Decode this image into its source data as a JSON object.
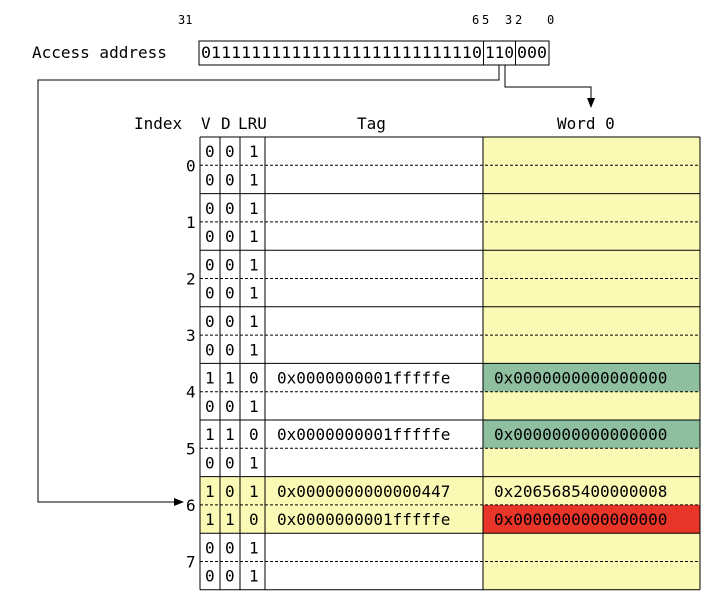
{
  "address": {
    "label": "Access address",
    "bits_tag": "0111111111111111111111111110",
    "bits_index": "110",
    "bits_offset": "000",
    "bit_positions": [
      "31",
      "6",
      "5",
      "3",
      "2",
      "0"
    ]
  },
  "headers": {
    "index": "Index",
    "valid": "V",
    "dirty": "D",
    "lru": "LRU",
    "tag": "Tag",
    "word0": "Word 0"
  },
  "colors": {
    "data_bg": "#fafab4",
    "hit_bg": "#fafab4",
    "match_green": "#8ec0a0",
    "access_red": "#e8352a",
    "line": "#000000"
  },
  "sets": [
    {
      "index": "0",
      "ways": [
        {
          "v": "0",
          "d": "0",
          "lru": "1",
          "tag": "",
          "word": "",
          "state": "empty"
        },
        {
          "v": "0",
          "d": "0",
          "lru": "1",
          "tag": "",
          "word": "",
          "state": "empty"
        }
      ]
    },
    {
      "index": "1",
      "ways": [
        {
          "v": "0",
          "d": "0",
          "lru": "1",
          "tag": "",
          "word": "",
          "state": "empty"
        },
        {
          "v": "0",
          "d": "0",
          "lru": "1",
          "tag": "",
          "word": "",
          "state": "empty"
        }
      ]
    },
    {
      "index": "2",
      "ways": [
        {
          "v": "0",
          "d": "0",
          "lru": "1",
          "tag": "",
          "word": "",
          "state": "empty"
        },
        {
          "v": "0",
          "d": "0",
          "lru": "1",
          "tag": "",
          "word": "",
          "state": "empty"
        }
      ]
    },
    {
      "index": "3",
      "ways": [
        {
          "v": "0",
          "d": "0",
          "lru": "1",
          "tag": "",
          "word": "",
          "state": "empty"
        },
        {
          "v": "0",
          "d": "0",
          "lru": "1",
          "tag": "",
          "word": "",
          "state": "empty"
        }
      ]
    },
    {
      "index": "4",
      "ways": [
        {
          "v": "1",
          "d": "1",
          "lru": "0",
          "tag": "0x0000000001fffffe",
          "word": "0x0000000000000000",
          "state": "match"
        },
        {
          "v": "0",
          "d": "0",
          "lru": "1",
          "tag": "",
          "word": "",
          "state": "empty"
        }
      ]
    },
    {
      "index": "5",
      "ways": [
        {
          "v": "1",
          "d": "1",
          "lru": "0",
          "tag": "0x0000000001fffffe",
          "word": "0x0000000000000000",
          "state": "match"
        },
        {
          "v": "0",
          "d": "0",
          "lru": "1",
          "tag": "",
          "word": "",
          "state": "empty"
        }
      ]
    },
    {
      "index": "6",
      "ways": [
        {
          "v": "1",
          "d": "0",
          "lru": "1",
          "tag": "0x0000000000000447",
          "word": "0x2065685400000008",
          "state": "active"
        },
        {
          "v": "1",
          "d": "1",
          "lru": "0",
          "tag": "0x0000000001fffffe",
          "word": "0x0000000000000000",
          "state": "accessed"
        }
      ]
    },
    {
      "index": "7",
      "ways": [
        {
          "v": "0",
          "d": "0",
          "lru": "1",
          "tag": "",
          "word": "",
          "state": "empty"
        },
        {
          "v": "0",
          "d": "0",
          "lru": "1",
          "tag": "",
          "word": "",
          "state": "empty"
        }
      ]
    }
  ]
}
